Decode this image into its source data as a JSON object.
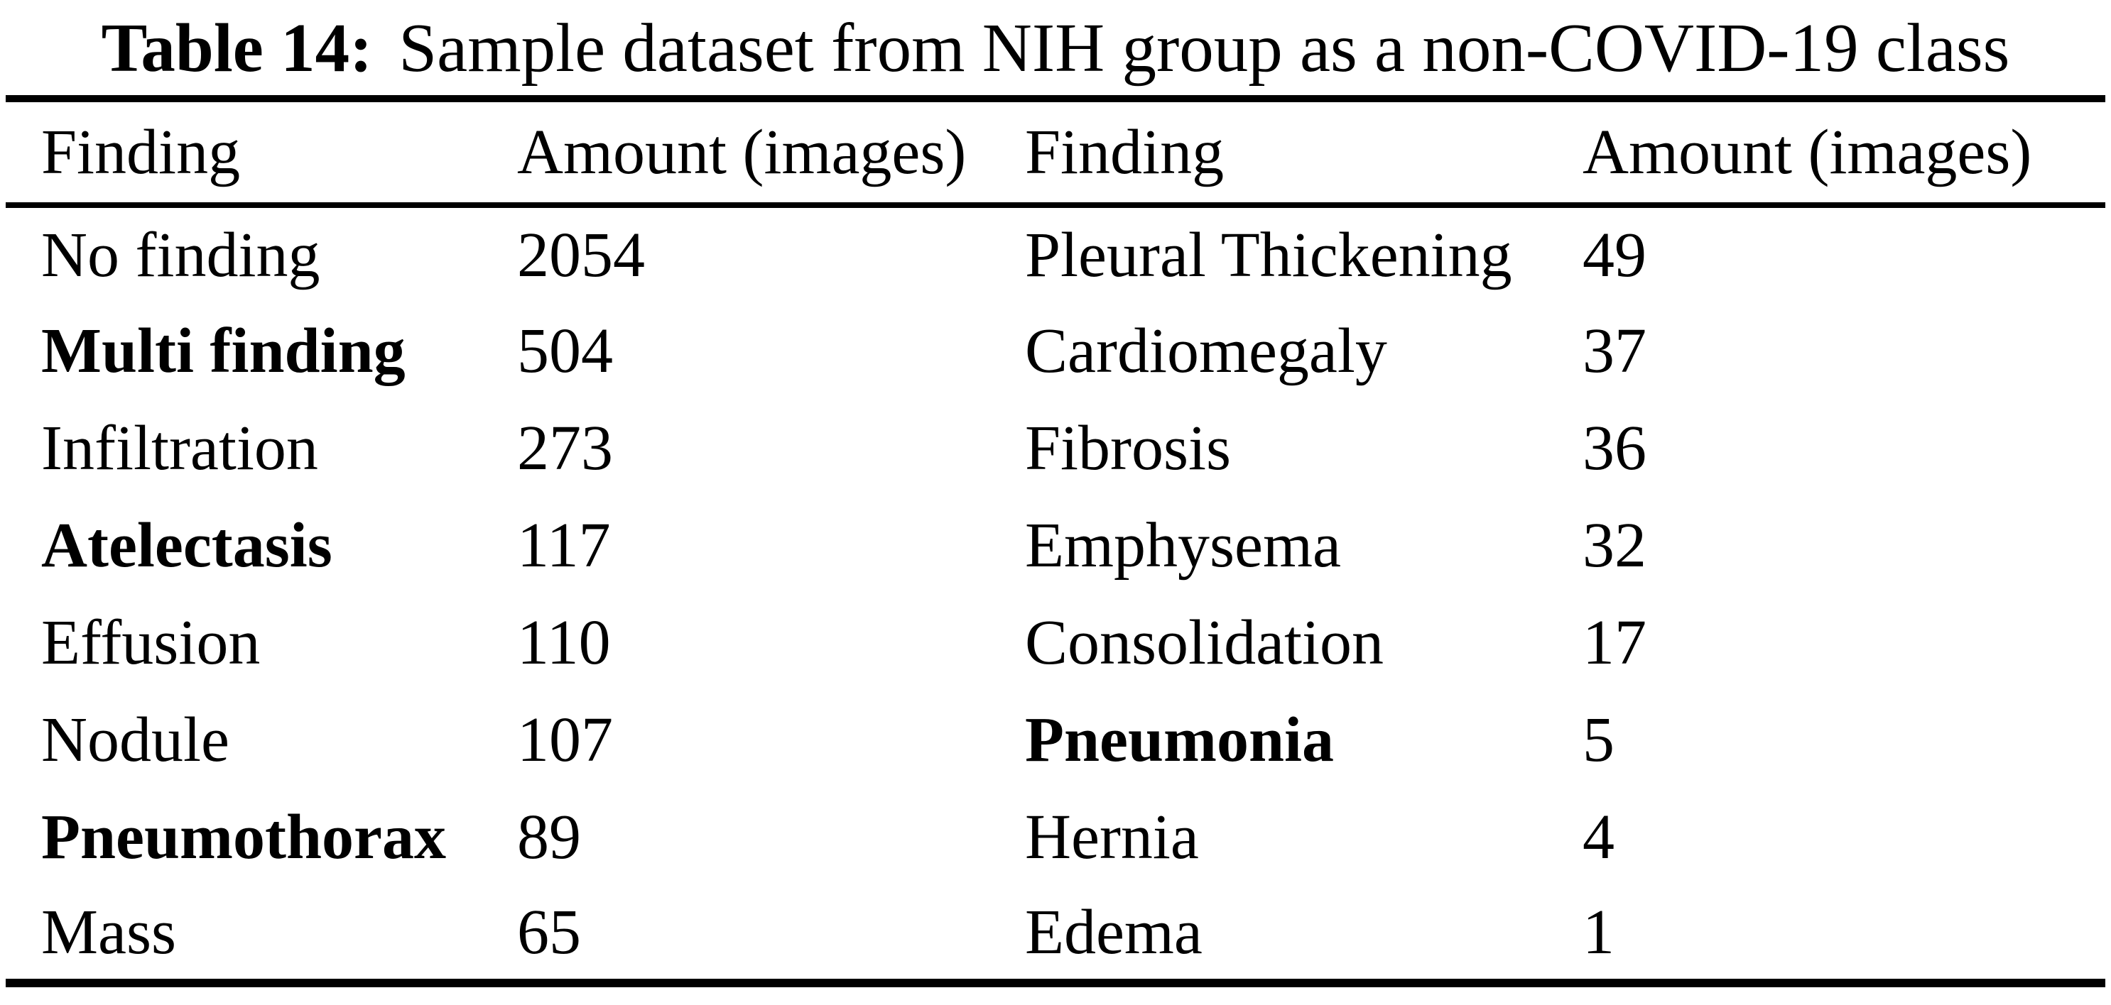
{
  "title": {
    "label": "Table 14:",
    "text": "Sample dataset from NIH group as a non-COVID-19 class"
  },
  "table": {
    "columns": [
      "Finding",
      "Amount (images)",
      "Finding",
      "Amount (images)"
    ],
    "rows": [
      {
        "cells": [
          {
            "text": "No finding",
            "bold": false
          },
          {
            "text": "2054",
            "bold": false
          },
          {
            "text": "Pleural Thickening",
            "bold": false
          },
          {
            "text": "49",
            "bold": false
          }
        ]
      },
      {
        "cells": [
          {
            "text": "Multi finding",
            "bold": true
          },
          {
            "text": "504",
            "bold": false
          },
          {
            "text": "Cardiomegaly",
            "bold": false
          },
          {
            "text": "37",
            "bold": false
          }
        ]
      },
      {
        "cells": [
          {
            "text": "Infiltration",
            "bold": false
          },
          {
            "text": "273",
            "bold": false
          },
          {
            "text": "Fibrosis",
            "bold": false
          },
          {
            "text": "36",
            "bold": false
          }
        ]
      },
      {
        "cells": [
          {
            "text": "Atelectasis",
            "bold": true
          },
          {
            "text": "117",
            "bold": false
          },
          {
            "text": "Emphysema",
            "bold": false
          },
          {
            "text": "32",
            "bold": false
          }
        ]
      },
      {
        "cells": [
          {
            "text": "Effusion",
            "bold": false
          },
          {
            "text": "110",
            "bold": false
          },
          {
            "text": "Consolidation",
            "bold": false
          },
          {
            "text": "17",
            "bold": false
          }
        ]
      },
      {
        "cells": [
          {
            "text": "Nodule",
            "bold": false
          },
          {
            "text": "107",
            "bold": false
          },
          {
            "text": "Pneumonia",
            "bold": true
          },
          {
            "text": "5",
            "bold": false
          }
        ]
      },
      {
        "cells": [
          {
            "text": "Pneumothorax",
            "bold": true
          },
          {
            "text": "89",
            "bold": false
          },
          {
            "text": "Hernia",
            "bold": false
          },
          {
            "text": "4",
            "bold": false
          }
        ]
      },
      {
        "cells": [
          {
            "text": "Mass",
            "bold": false
          },
          {
            "text": "65",
            "bold": false
          },
          {
            "text": "Edema",
            "bold": false
          },
          {
            "text": "1",
            "bold": false
          }
        ]
      }
    ]
  }
}
